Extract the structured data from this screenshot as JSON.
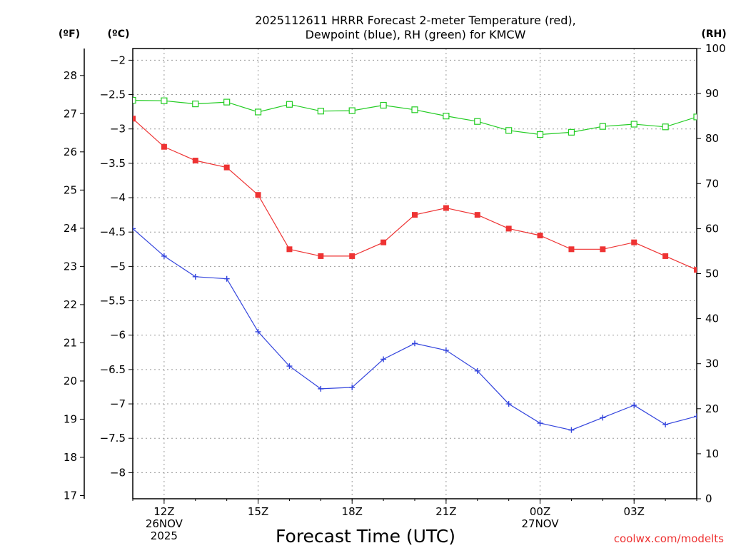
{
  "chart_data": {
    "type": "line",
    "title_lines": [
      "2025112611 HRRR Forecast 2-meter Temperature (red),",
      "Dewpoint (blue), RH (green) for KMCW"
    ],
    "xlabel": "Forecast Time (UTC)",
    "credit": "coolwx.com/modelts",
    "left_unit_f": "(ºF)",
    "left_unit_c": "(ºC)",
    "right_unit": "(RH)",
    "x_hours_from_11z": [
      0,
      1,
      2,
      3,
      4,
      5,
      6,
      7,
      8,
      9,
      10,
      11,
      12,
      13,
      14,
      15,
      16,
      17,
      18
    ],
    "x_range": [
      0,
      18
    ],
    "x_ticks": [
      {
        "hour": 1,
        "lines": [
          "12Z",
          "26NOV",
          "2025"
        ]
      },
      {
        "hour": 4,
        "lines": [
          "15Z"
        ]
      },
      {
        "hour": 7,
        "lines": [
          "18Z"
        ]
      },
      {
        "hour": 10,
        "lines": [
          "21Z"
        ]
      },
      {
        "hour": 13,
        "lines": [
          "00Z",
          "27NOV"
        ]
      },
      {
        "hour": 16,
        "lines": [
          "03Z"
        ]
      }
    ],
    "y_celsius_range": [
      -8.38,
      -1.83
    ],
    "y_celsius_ticks": [
      -2,
      -2.5,
      -3,
      -3.5,
      -4,
      -4.5,
      -5,
      -5.5,
      -6,
      -6.5,
      -7,
      -7.5,
      -8
    ],
    "y_fahrenheit_ticks": [
      17,
      18,
      19,
      20,
      21,
      22,
      23,
      24,
      25,
      26,
      27,
      28
    ],
    "y_rh_range": [
      0,
      100
    ],
    "y_rh_ticks": [
      0,
      10,
      20,
      30,
      40,
      50,
      60,
      70,
      80,
      90,
      100
    ],
    "grid": true,
    "series": [
      {
        "name": "Temperature",
        "axis": "celsius",
        "color": "#ee3333",
        "marker": "filled-square",
        "values": [
          -2.85,
          -3.26,
          -3.46,
          -3.56,
          -3.96,
          -4.75,
          -4.85,
          -4.85,
          -4.65,
          -4.25,
          -4.15,
          -4.25,
          -4.45,
          -4.55,
          -4.75,
          -4.75,
          -4.65,
          -4.85,
          -5.05
        ]
      },
      {
        "name": "Dewpoint",
        "axis": "celsius",
        "color": "#3344dd",
        "marker": "plus",
        "values": [
          -4.45,
          -4.85,
          -5.15,
          -5.18,
          -5.95,
          -6.45,
          -6.78,
          -6.76,
          -6.35,
          -6.12,
          -6.22,
          -6.52,
          -7.0,
          -7.28,
          -7.38,
          -7.2,
          -7.02,
          -7.3,
          -7.18
        ]
      },
      {
        "name": "RH",
        "axis": "rh",
        "color": "#22cc22",
        "marker": "open-square",
        "values": [
          88.5,
          88.4,
          87.7,
          88.1,
          85.9,
          87.6,
          86.1,
          86.2,
          87.4,
          86.4,
          85.0,
          83.8,
          81.8,
          80.9,
          81.4,
          82.7,
          83.2,
          82.6,
          84.8
        ]
      }
    ]
  }
}
